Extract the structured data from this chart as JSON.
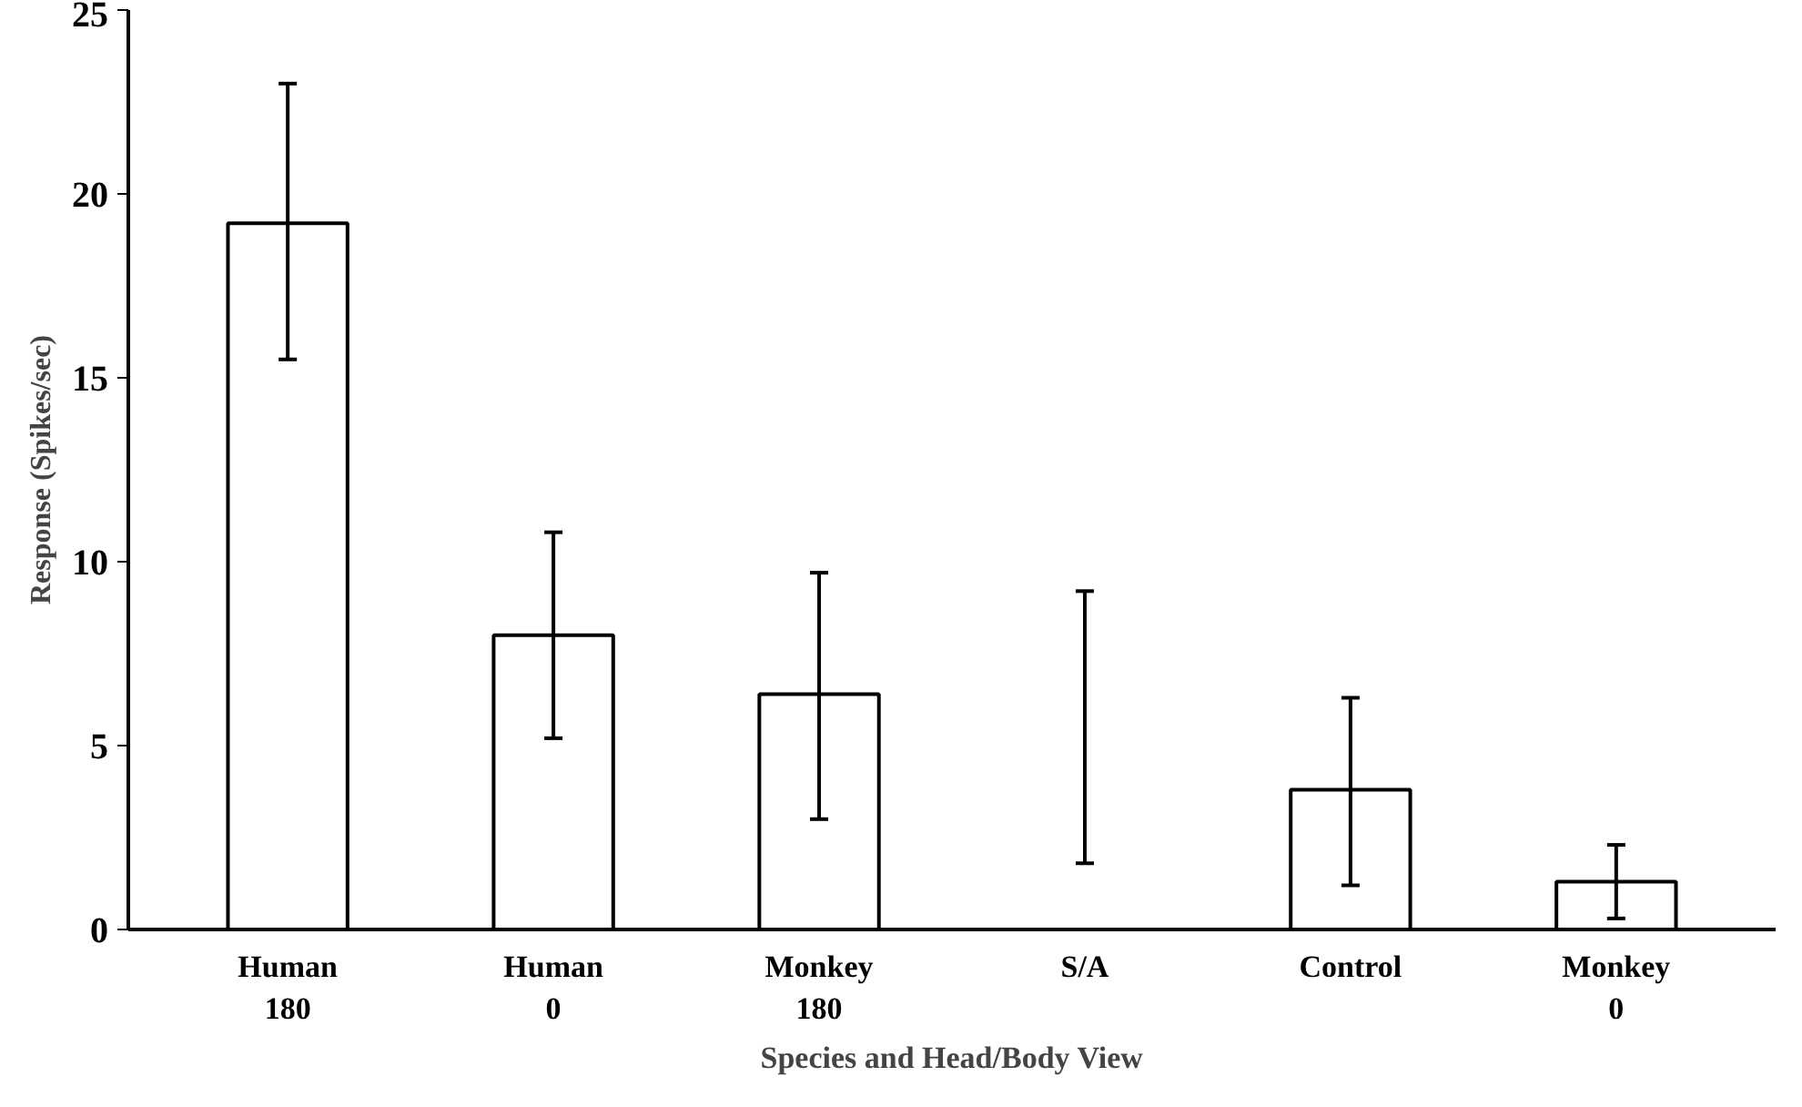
{
  "chart_data": {
    "type": "bar",
    "xlabel": "Species and Head/Body View",
    "ylabel": "Response (Spikes/sec)",
    "categories": [
      "Human\n180",
      "Human\n0",
      "Monkey\n180",
      "S/A",
      "Control",
      "Monkey\n0"
    ],
    "values": [
      19.2,
      8.0,
      6.4,
      0,
      3.8,
      1.3
    ],
    "errors": [
      [
        15.5,
        23.0
      ],
      [
        5.2,
        10.8
      ],
      [
        3.0,
        9.7
      ],
      [
        1.8,
        9.2
      ],
      [
        1.2,
        6.3
      ],
      [
        0.3,
        2.3
      ]
    ],
    "color": "#ffffff",
    "ylim": [
      0,
      25
    ],
    "yticks": [
      0,
      5,
      10,
      15,
      20,
      25
    ],
    "grid": false
  }
}
